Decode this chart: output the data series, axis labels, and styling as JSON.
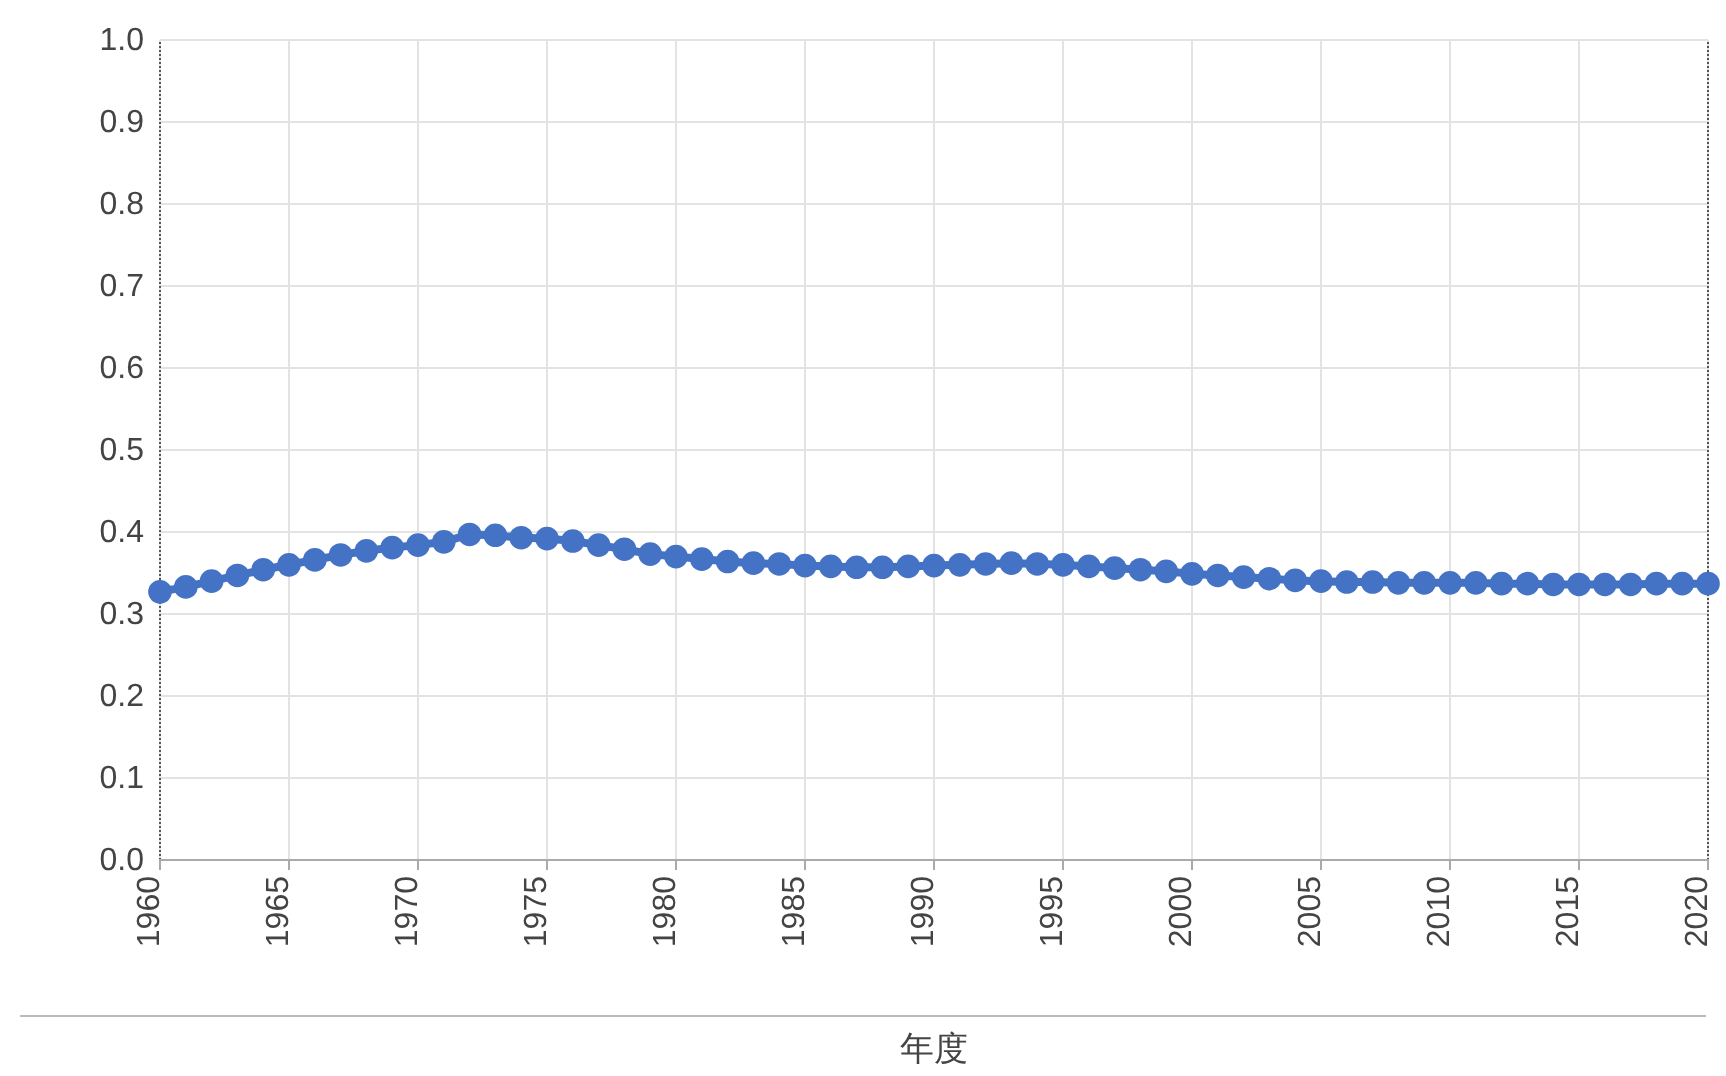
{
  "chart_data": {
    "type": "line",
    "xlabel": "年度",
    "marker": "circle",
    "grid": true,
    "x": [
      1960,
      1961,
      1962,
      1963,
      1964,
      1965,
      1966,
      1967,
      1968,
      1969,
      1970,
      1971,
      1972,
      1973,
      1974,
      1975,
      1976,
      1977,
      1978,
      1979,
      1980,
      1981,
      1982,
      1983,
      1984,
      1985,
      1986,
      1987,
      1988,
      1989,
      1990,
      1991,
      1992,
      1993,
      1994,
      1995,
      1996,
      1997,
      1998,
      1999,
      2000,
      2001,
      2002,
      2003,
      2004,
      2005,
      2006,
      2007,
      2008,
      2009,
      2010,
      2011,
      2012,
      2013,
      2014,
      2015,
      2016,
      2017,
      2018,
      2019,
      2020
    ],
    "series": [
      {
        "color": "#4472c4",
        "values": [
          0.327,
          0.333,
          0.34,
          0.347,
          0.354,
          0.36,
          0.366,
          0.372,
          0.377,
          0.381,
          0.384,
          0.388,
          0.397,
          0.396,
          0.393,
          0.392,
          0.389,
          0.384,
          0.379,
          0.373,
          0.37,
          0.367,
          0.364,
          0.362,
          0.361,
          0.359,
          0.358,
          0.357,
          0.357,
          0.358,
          0.359,
          0.36,
          0.361,
          0.362,
          0.361,
          0.36,
          0.358,
          0.356,
          0.354,
          0.352,
          0.349,
          0.347,
          0.345,
          0.343,
          0.341,
          0.34,
          0.339,
          0.339,
          0.338,
          0.338,
          0.338,
          0.338,
          0.337,
          0.337,
          0.336,
          0.336,
          0.336,
          0.336,
          0.337,
          0.337,
          0.337
        ]
      }
    ],
    "xlim": [
      1960,
      2020
    ],
    "xticks": [
      1960,
      1965,
      1970,
      1975,
      1980,
      1985,
      1990,
      1995,
      2000,
      2005,
      2010,
      2015,
      2020
    ],
    "ylim": [
      0,
      1
    ],
    "yticks": [
      {
        "value": 0,
        "label": "0.0"
      },
      {
        "value": 0.1,
        "label": "0.1"
      },
      {
        "value": 0.2,
        "label": "0.2"
      },
      {
        "value": 0.3,
        "label": "0.3"
      },
      {
        "value": 0.4,
        "label": "0.4"
      },
      {
        "value": 0.5,
        "label": "0.5"
      },
      {
        "value": 0.6,
        "label": "0.6"
      },
      {
        "value": 0.7,
        "label": "0.7"
      },
      {
        "value": 0.8,
        "label": "0.8"
      },
      {
        "value": 0.9,
        "label": "0.9"
      },
      {
        "value": 1,
        "label": "1.0"
      }
    ]
  }
}
